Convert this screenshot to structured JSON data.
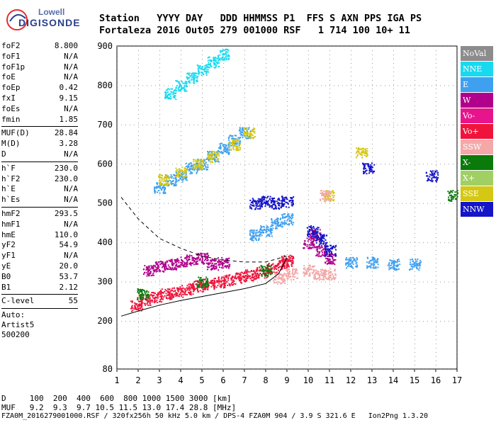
{
  "logo": {
    "line1": "Lowell",
    "line2": "DIGISONDE"
  },
  "header": {
    "labels": "Station   YYYY DAY   DDD HHMMSS P1  FFS S AXN PPS IGA PS",
    "values": "Fortaleza 2016 Out05 279 001000 RSF   1 714 100 10+ 11"
  },
  "params": [
    {
      "k": "foF2",
      "v": "8.800"
    },
    {
      "k": "foF1",
      "v": "N/A"
    },
    {
      "k": "foF1p",
      "v": "N/A"
    },
    {
      "k": "foE",
      "v": "N/A"
    },
    {
      "k": "foEp",
      "v": "0.42"
    },
    {
      "k": "fxI",
      "v": "9.15"
    },
    {
      "k": "foEs",
      "v": "N/A"
    },
    {
      "k": "fmin",
      "v": "1.85"
    }
  ],
  "params2": [
    {
      "k": "MUF(D)",
      "v": "28.84"
    },
    {
      "k": "M(D)",
      "v": "3.28"
    },
    {
      "k": "D",
      "v": "N/A"
    }
  ],
  "params3": [
    {
      "k": "h`F",
      "v": "230.0"
    },
    {
      "k": "h`F2",
      "v": "230.0"
    },
    {
      "k": "h`E",
      "v": "N/A"
    },
    {
      "k": "h`Es",
      "v": "N/A"
    }
  ],
  "params4": [
    {
      "k": "hmF2",
      "v": "293.5"
    },
    {
      "k": "hmF1",
      "v": "N/A"
    },
    {
      "k": "hmE",
      "v": "110.0"
    },
    {
      "k": "yF2",
      "v": "54.9"
    },
    {
      "k": "yF1",
      "v": "N/A"
    },
    {
      "k": "yE",
      "v": "20.0"
    },
    {
      "k": "B0",
      "v": "53.7"
    },
    {
      "k": "B1",
      "v": "2.12"
    }
  ],
  "params5": [
    {
      "k": "C-level",
      "v": "55"
    }
  ],
  "auto": [
    "Auto:",
    "Artist5",
    "500200"
  ],
  "legend": [
    {
      "name": "NoVal",
      "color": "#8c8c8c"
    },
    {
      "name": "NNE",
      "color": "#19d9f0"
    },
    {
      "name": "E",
      "color": "#3fa0f0"
    },
    {
      "name": "W",
      "color": "#b0008c"
    },
    {
      "name": "Vo-",
      "color": "#e8148c"
    },
    {
      "name": "Vo+",
      "color": "#f0143c"
    },
    {
      "name": "SSW",
      "color": "#f4a8a8"
    },
    {
      "name": "X-",
      "color": "#0a7a0a"
    },
    {
      "name": "X+",
      "color": "#a0d064"
    },
    {
      "name": "SSE",
      "color": "#d4c814"
    },
    {
      "name": "NNW",
      "color": "#1414c8"
    }
  ],
  "footer": {
    "d_line": "D     100  200  400  600  800 1000 1500 3000 [km]",
    "muf_line": "MUF   9.2  9.3  9.7 10.5 11.5 13.0 17.4 28.8 [MHz]",
    "file_line": "FZA0M_2016279001000.RSF / 320fx256h 50 kHz 5.0 km / DPS-4 FZA0M 904 / 3.9 S 321.6 E   Ion2Png 1.3.20"
  },
  "chart_data": {
    "type": "scatter",
    "x_ticks": [
      1,
      2,
      3,
      4,
      5,
      6,
      7,
      8,
      9,
      10,
      11,
      12,
      13,
      14,
      15,
      16,
      17
    ],
    "y_ticks": [
      80,
      200,
      300,
      400,
      500,
      600,
      700,
      800,
      900
    ],
    "xlim": [
      1,
      17
    ],
    "ylim": [
      80,
      900
    ],
    "xlabel": "",
    "ylabel": "",
    "series": [
      {
        "color": "#f0143c",
        "points": [
          [
            1.9,
            240
          ],
          [
            2.3,
            255
          ],
          [
            2.8,
            262
          ],
          [
            3.3,
            270
          ],
          [
            3.8,
            275
          ],
          [
            4.3,
            282
          ],
          [
            4.8,
            290
          ],
          [
            5.3,
            295
          ],
          [
            5.8,
            300
          ],
          [
            6.3,
            305
          ],
          [
            6.8,
            312
          ],
          [
            7.3,
            318
          ],
          [
            7.8,
            325
          ],
          [
            8.3,
            335
          ],
          [
            8.8,
            345
          ],
          [
            9.0,
            355
          ]
        ]
      },
      {
        "color": "#b0008c",
        "points": [
          [
            2.5,
            330
          ],
          [
            3.0,
            340
          ],
          [
            3.5,
            345
          ],
          [
            4.0,
            350
          ],
          [
            4.5,
            355
          ],
          [
            5.0,
            360
          ],
          [
            5.5,
            345
          ],
          [
            6.0,
            350
          ],
          [
            10.0,
            400
          ],
          [
            10.3,
            420
          ],
          [
            10.6,
            380
          ],
          [
            11.0,
            360
          ]
        ]
      },
      {
        "color": "#3fa0f0",
        "points": [
          [
            3.0,
            540
          ],
          [
            3.5,
            560
          ],
          [
            4.0,
            570
          ],
          [
            4.5,
            590
          ],
          [
            5.0,
            600
          ],
          [
            5.5,
            620
          ],
          [
            6.0,
            640
          ],
          [
            6.5,
            660
          ],
          [
            7.0,
            680
          ],
          [
            7.5,
            420
          ],
          [
            8.0,
            430
          ],
          [
            8.5,
            450
          ],
          [
            9.0,
            460
          ],
          [
            12.0,
            350
          ],
          [
            13.0,
            350
          ],
          [
            14.0,
            345
          ],
          [
            15.0,
            345
          ]
        ]
      },
      {
        "color": "#19d9f0",
        "points": [
          [
            3.5,
            780
          ],
          [
            4.0,
            800
          ],
          [
            4.5,
            820
          ],
          [
            5.0,
            840
          ],
          [
            5.5,
            860
          ],
          [
            6.0,
            880
          ]
        ]
      },
      {
        "color": "#d4c814",
        "points": [
          [
            3.2,
            560
          ],
          [
            4.0,
            580
          ],
          [
            4.8,
            600
          ],
          [
            5.5,
            620
          ],
          [
            6.5,
            650
          ],
          [
            7.2,
            680
          ],
          [
            11.0,
            520
          ],
          [
            12.5,
            630
          ]
        ]
      },
      {
        "color": "#1414c8",
        "points": [
          [
            7.5,
            500
          ],
          [
            8.0,
            505
          ],
          [
            8.5,
            500
          ],
          [
            9.0,
            505
          ],
          [
            10.2,
            430
          ],
          [
            10.6,
            410
          ],
          [
            11.0,
            380
          ],
          [
            12.8,
            590
          ],
          [
            15.8,
            570
          ]
        ]
      },
      {
        "color": "#f4a8a8",
        "points": [
          [
            8.6,
            310
          ],
          [
            9.2,
            320
          ],
          [
            10.0,
            330
          ],
          [
            10.5,
            320
          ],
          [
            11.0,
            320
          ],
          [
            10.8,
            520
          ]
        ]
      },
      {
        "color": "#0a7a0a",
        "points": [
          [
            2.2,
            270
          ],
          [
            5.0,
            300
          ],
          [
            8.0,
            330
          ],
          [
            16.8,
            520
          ]
        ]
      }
    ]
  }
}
